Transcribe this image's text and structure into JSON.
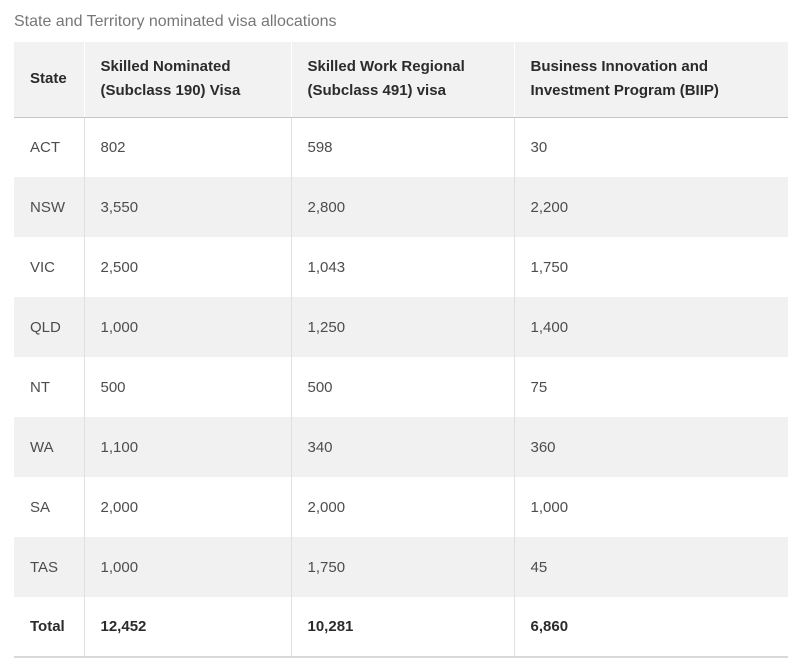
{
  "title": "State and Territory nominated visa allocations",
  "colors": {
    "header_bg": "#f2f2f2",
    "stripe_bg": "#f1f1f1",
    "header_text": "#2b2b2b",
    "body_text": "#4d4d4d",
    "title_text": "#777777",
    "divider": "#e0e0e0",
    "bottom_border": "#d9d9d9"
  },
  "table": {
    "columns": [
      "State",
      "Skilled Nominated (Subclass 190) Visa",
      "Skilled Work Regional (Subclass 491) visa",
      "Business Innovation and Investment Program (BIIP)"
    ],
    "rows": [
      {
        "state": "ACT",
        "values": [
          "802",
          "598",
          "30"
        ]
      },
      {
        "state": "NSW",
        "values": [
          "3,550",
          "2,800",
          "2,200"
        ]
      },
      {
        "state": "VIC",
        "values": [
          "2,500",
          "1,043",
          "1,750"
        ]
      },
      {
        "state": "QLD",
        "values": [
          "1,000",
          "1,250",
          "1,400"
        ]
      },
      {
        "state": "NT",
        "values": [
          "500",
          "500",
          "75"
        ]
      },
      {
        "state": "WA",
        "values": [
          "1,100",
          "340",
          "360"
        ]
      },
      {
        "state": "SA",
        "values": [
          "2,000",
          "2,000",
          "1,000"
        ]
      },
      {
        "state": "TAS",
        "values": [
          "1,000",
          "1,750",
          "45"
        ]
      }
    ],
    "total": {
      "label": "Total",
      "values": [
        "12,452",
        "10,281",
        "6,860"
      ]
    }
  }
}
